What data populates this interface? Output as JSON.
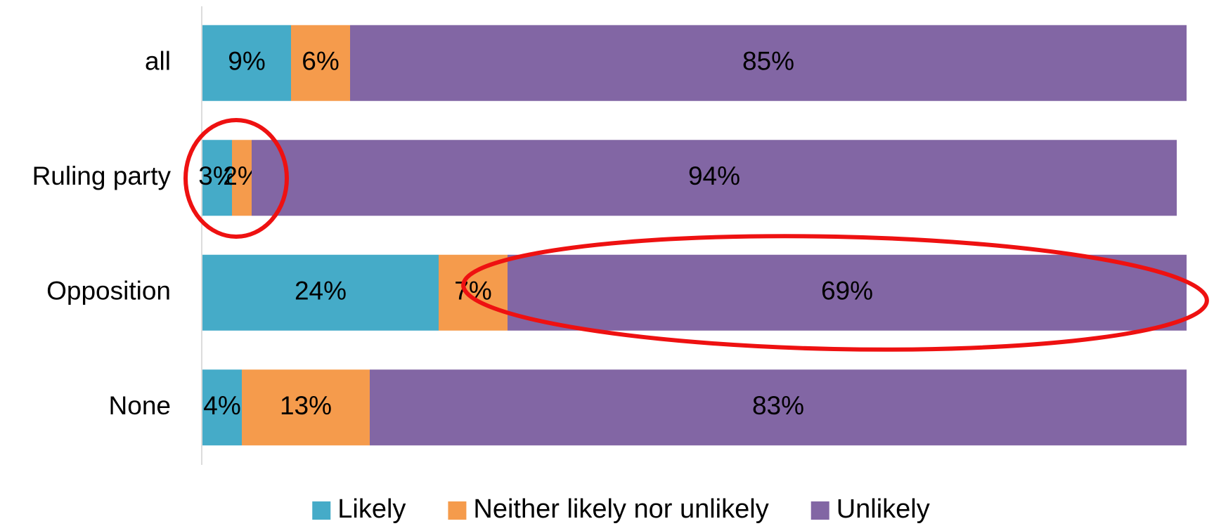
{
  "chart_data": {
    "type": "stacked_bar_horizontal",
    "categories": [
      "all",
      "Ruling party",
      "Opposition",
      "None"
    ],
    "series": [
      {
        "name": "Likely",
        "color": "#45abc8",
        "values": [
          9,
          3,
          24,
          4
        ],
        "value_labels": [
          "9%",
          "3%",
          "24%",
          "4%"
        ]
      },
      {
        "name": "Neither likely nor unlikely",
        "color": "#f59b4c",
        "values": [
          6,
          2,
          7,
          13
        ],
        "value_labels": [
          "6%",
          "2%",
          "7%",
          "13%"
        ]
      },
      {
        "name": "Unlikely",
        "color": "#8266a4",
        "values": [
          85,
          94,
          69,
          83
        ],
        "value_labels": [
          "85%",
          "94%",
          "69%",
          "83%"
        ]
      }
    ],
    "xlim": [
      0,
      100
    ],
    "legend": "bottom"
  }
}
